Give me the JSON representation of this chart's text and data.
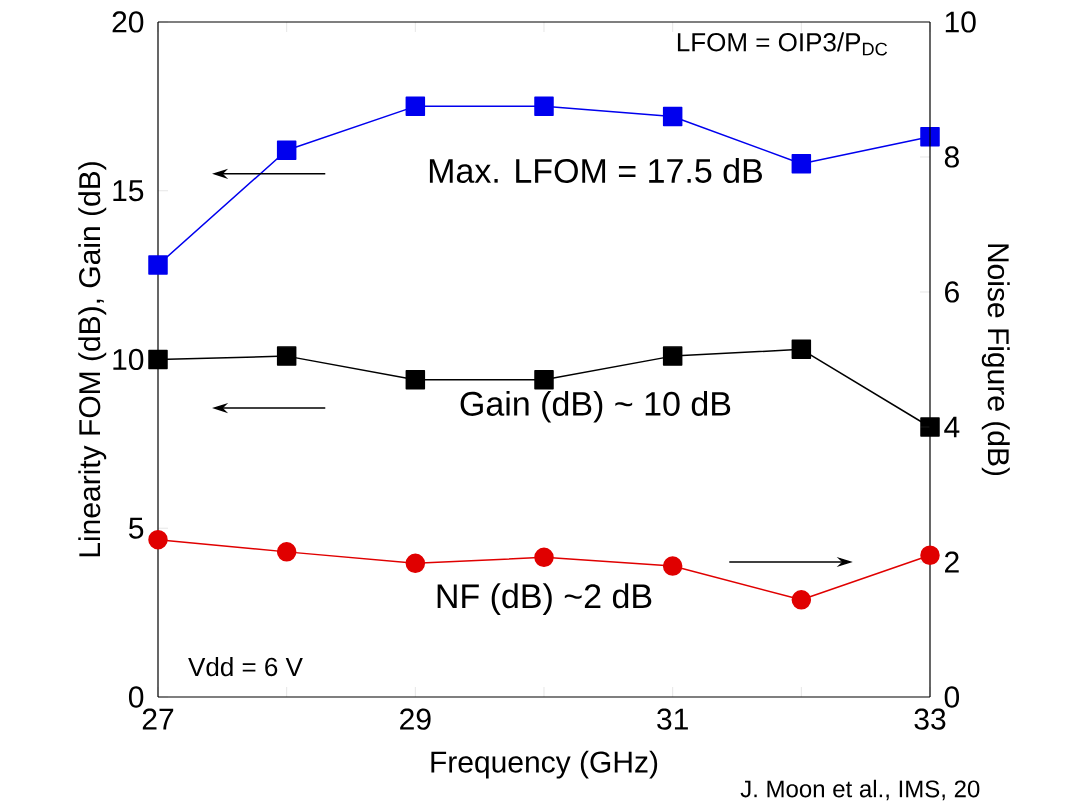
{
  "chart_data": {
    "type": "line",
    "xlabel": "Frequency (GHz)",
    "ylabel": "Linearity FOM (dB), Gain (dB)",
    "y2label": "Noise Figure (dB)",
    "x": [
      27,
      28,
      29,
      30,
      31,
      32,
      33
    ],
    "xlim": [
      27,
      33
    ],
    "xticks": [
      27,
      {
        "value": 28,
        "label": null
      },
      29,
      {
        "value": 30,
        "label": null
      },
      31,
      {
        "value": 32,
        "label": null
      },
      33
    ],
    "ylim": [
      0,
      20
    ],
    "yticks": [
      0,
      5,
      10,
      15,
      20
    ],
    "y2lim": [
      0,
      10
    ],
    "y2ticks": [
      0,
      2,
      4,
      6,
      8,
      10
    ],
    "series": [
      {
        "color": "#0000ee",
        "marker": "square",
        "values": [
          12.8,
          16.2,
          17.5,
          17.5,
          17.2,
          15.8,
          16.6
        ]
      },
      {
        "color": "#000000",
        "marker": "square",
        "values": [
          10.0,
          10.1,
          9.4,
          9.4,
          10.1,
          10.3,
          8.0
        ]
      },
      {
        "color": "#e00000",
        "marker": "circle",
        "axis": "y2",
        "values": [
          2.33,
          2.15,
          1.98,
          2.07,
          1.94,
          1.44,
          2.1
        ]
      }
    ],
    "annotations": [
      "LFOM = OIP3/P$_{DC}$",
      "Max. LFOM = 17.5 dB",
      "Gain (dB) ~ 10 dB",
      "NF (dB) ~2 dB",
      "Vdd = 6 V",
      "J. Moon et al., IMS, 20"
    ]
  }
}
